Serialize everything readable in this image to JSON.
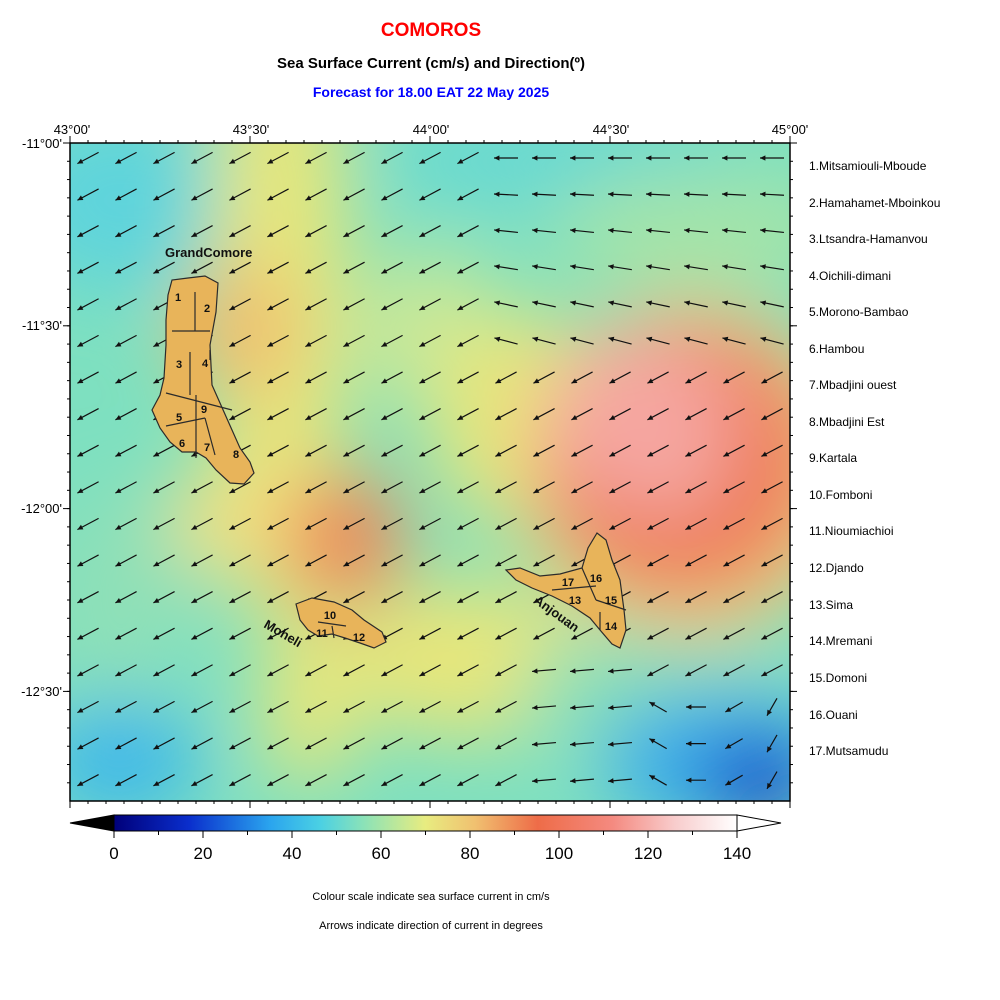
{
  "title": "COMOROS",
  "subtitle": "Sea Surface Current (cm/s) and Direction(º)",
  "forecast": "Forecast for  18.00 EAT 22 May 2025",
  "colors": {
    "title": "#ff0000",
    "forecast": "#0000ff",
    "land": "#e8b45a"
  },
  "axes": {
    "lon_labels": [
      "43°00'",
      "43°30'",
      "44°00'",
      "44°30'",
      "45°00'"
    ],
    "lat_labels": [
      "-11°00'",
      "-11°30'",
      "-12°00'",
      "-12°30'"
    ],
    "lon_range": [
      43.0,
      45.0
    ],
    "lat_range": [
      -12.8,
      -11.0
    ]
  },
  "islands": {
    "grand_comore": "GrandComore",
    "moheli": "Moheli",
    "anjouan": "Anjouan",
    "region_numbers": [
      "1",
      "2",
      "3",
      "4",
      "5",
      "6",
      "7",
      "8",
      "9",
      "10",
      "11",
      "12",
      "13",
      "14",
      "15",
      "16",
      "17"
    ]
  },
  "regions": [
    "1.Mitsamiouli-Mboude",
    "2.Hamahamet-Mboinkou",
    "3.Ltsandra-Hamanvou",
    "4.Oichili-dimani",
    "5.Morono-Bambao",
    "6.Hambou",
    "7.Mbadjini ouest",
    "8.Mbadjini Est",
    "9.Kartala",
    "10.Fomboni",
    "11.Nioumiachioi",
    "12.Djando",
    "13.Sima",
    "14.Mremani",
    "15.Domoni",
    "16.Ouani",
    "17.Mutsamudu"
  ],
  "colorbar": {
    "ticks": [
      "0",
      "20",
      "40",
      "60",
      "80",
      "100",
      "120",
      "140"
    ],
    "range": [
      -10,
      150
    ],
    "unit": "cm/s"
  },
  "notes": [
    "Colour scale indicate sea surface current in cm/s",
    "Arrows indicate direction of current in degrees"
  ]
}
